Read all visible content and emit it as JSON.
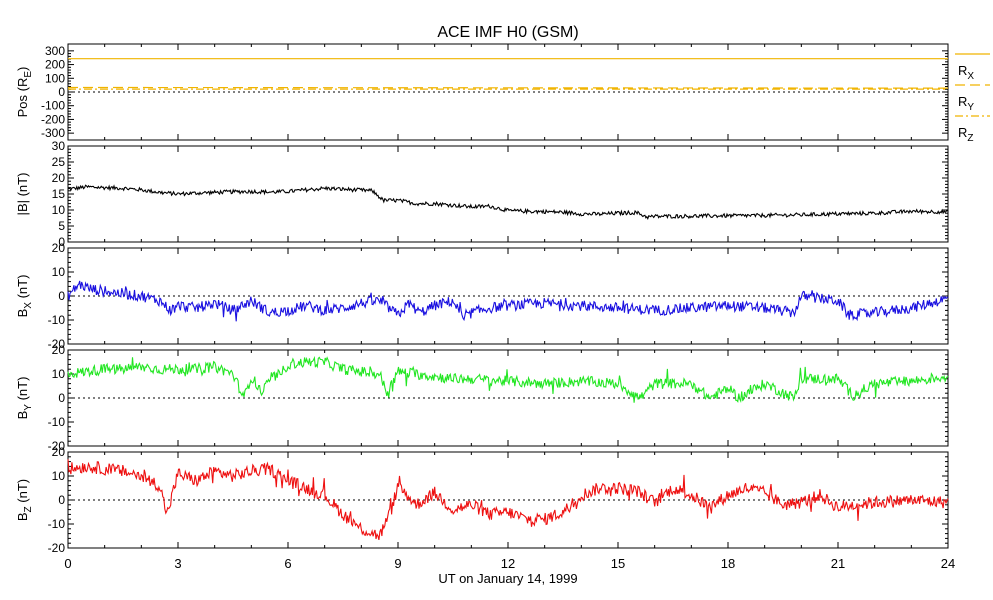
{
  "title": "ACE IMF H0 (GSM)",
  "xlabel": "UT on January 14, 1999",
  "x_ticks": [
    "0",
    "3",
    "6",
    "9",
    "12",
    "15",
    "18",
    "21",
    "24"
  ],
  "colors": {
    "pos": "#f0b400",
    "absb": "#000000",
    "bx": "#1a10e0",
    "by": "#22e622",
    "bz": "#ee1010",
    "zero_line": "#000000"
  },
  "chart_data": [
    {
      "type": "line",
      "panel": "position",
      "ylabel": "Pos (RE)",
      "ylabel_parts": {
        "main": "Pos (R",
        "sub": "E",
        "tail": ")"
      },
      "ylim": [
        -350,
        350
      ],
      "yticks": [
        "300",
        "200",
        "100",
        "0",
        "-100",
        "-200",
        "-300"
      ],
      "ytick_values": [
        300,
        200,
        100,
        0,
        -100,
        -200,
        -300
      ],
      "zero_line": true,
      "xlim": [
        0,
        24
      ],
      "series": [
        {
          "name": "RX",
          "label_main": "R",
          "label_sub": "X",
          "style": "solid",
          "x": [
            0,
            24
          ],
          "values": [
            243,
            243
          ]
        },
        {
          "name": "RY",
          "label_main": "R",
          "label_sub": "Y",
          "style": "dashed",
          "x": [
            0,
            24
          ],
          "values": [
            33,
            28
          ]
        },
        {
          "name": "RZ",
          "label_main": "R",
          "label_sub": "Z",
          "style": "dashdot",
          "x": [
            0,
            24
          ],
          "values": [
            21,
            21
          ]
        }
      ]
    },
    {
      "type": "line",
      "panel": "absb",
      "ylabel": "|B| (nT)",
      "ylim": [
        0,
        30
      ],
      "yticks": [
        "30",
        "25",
        "20",
        "15",
        "10",
        "5",
        "0"
      ],
      "ytick_values": [
        30,
        25,
        20,
        15,
        10,
        5,
        0
      ],
      "zero_line": false,
      "xlim": [
        0,
        24
      ],
      "noise": 0.6,
      "series": [
        {
          "name": "|B|",
          "x": [
            0,
            0.5,
            1.0,
            1.5,
            2.0,
            2.5,
            3.0,
            3.5,
            4.0,
            4.5,
            5.0,
            5.5,
            6.0,
            6.5,
            7.0,
            7.5,
            8.0,
            8.3,
            8.6,
            9.0,
            9.5,
            10.0,
            10.5,
            11.0,
            11.5,
            12.0,
            12.5,
            13.0,
            13.5,
            14.0,
            14.5,
            15.0,
            15.5,
            15.8,
            16.0,
            17.0,
            18.0,
            19.0,
            20.0,
            21.0,
            22.0,
            23.0,
            24.0
          ],
          "values": [
            16.5,
            17.2,
            17.0,
            16.8,
            16.3,
            15.5,
            15.0,
            15.3,
            15.5,
            15.7,
            15.8,
            15.6,
            15.8,
            16.3,
            16.8,
            16.5,
            16.2,
            16.0,
            13.0,
            13.0,
            12.0,
            12.0,
            11.5,
            11.0,
            11.2,
            9.8,
            9.6,
            9.5,
            9.3,
            8.8,
            8.7,
            9.0,
            9.2,
            7.8,
            8.0,
            8.1,
            8.2,
            8.3,
            8.5,
            8.8,
            9.0,
            9.6,
            9.4
          ]
        }
      ]
    },
    {
      "type": "line",
      "panel": "bx",
      "ylabel": "BX (nT)",
      "ylabel_parts": {
        "main": "B",
        "sub": "X",
        "tail": " (nT)"
      },
      "ylim": [
        -20,
        20
      ],
      "yticks": [
        "20",
        "10",
        "0",
        "-10",
        "-20"
      ],
      "ytick_values": [
        20,
        10,
        0,
        -10,
        -20
      ],
      "zero_line": true,
      "xlim": [
        0,
        24
      ],
      "noise": 2.2,
      "series": [
        {
          "name": "BX",
          "x": [
            0,
            0.3,
            0.6,
            1.0,
            1.5,
            2.0,
            2.5,
            2.8,
            3.0,
            3.5,
            4.0,
            4.5,
            5.0,
            5.5,
            6.0,
            6.5,
            7.0,
            7.5,
            8.0,
            8.5,
            9.0,
            9.3,
            9.6,
            10.0,
            10.5,
            10.8,
            11.0,
            11.5,
            12.0,
            13.0,
            14.0,
            15.0,
            16.0,
            17.0,
            18.0,
            19.0,
            19.8,
            20.0,
            20.5,
            21.0,
            21.3,
            22.0,
            23.0,
            23.5,
            24.0
          ],
          "values": [
            0,
            5,
            3,
            2,
            1,
            0,
            -2,
            -6,
            -4,
            -5,
            -3,
            -6,
            -2,
            -7,
            -6,
            -4,
            -6,
            -5,
            -3,
            -2,
            -8,
            -3,
            -7,
            -4,
            -2,
            -10,
            -7,
            -5,
            -4,
            -3,
            -4,
            -5,
            -6,
            -5,
            -4,
            -5,
            -7,
            0,
            -1,
            -2,
            -8,
            -7,
            -5,
            -3,
            -1
          ]
        }
      ]
    },
    {
      "type": "line",
      "panel": "by",
      "ylabel": "BY (nT)",
      "ylabel_parts": {
        "main": "B",
        "sub": "Y",
        "tail": " (nT)"
      },
      "ylim": [
        -20,
        20
      ],
      "yticks": [
        "20",
        "10",
        "0",
        "-10",
        "-20"
      ],
      "ytick_values": [
        20,
        10,
        0,
        -10,
        -20
      ],
      "zero_line": true,
      "xlim": [
        0,
        24
      ],
      "noise": 2.2,
      "series": [
        {
          "name": "BY",
          "x": [
            0,
            0.5,
            1.0,
            1.5,
            2.0,
            2.5,
            3.0,
            3.5,
            4.0,
            4.5,
            4.8,
            5.0,
            5.3,
            5.5,
            5.8,
            6.0,
            6.5,
            7.0,
            7.5,
            8.0,
            8.5,
            8.7,
            9.0,
            9.5,
            10.0,
            10.5,
            11.0,
            12.0,
            13.0,
            14.0,
            15.0,
            15.6,
            16.0,
            17.0,
            17.5,
            18.0,
            18.3,
            19.0,
            19.8,
            20.0,
            21.0,
            21.4,
            22.0,
            23.0,
            24.0
          ],
          "values": [
            10,
            11,
            12,
            12,
            13,
            12,
            12,
            12,
            13,
            10,
            0,
            9,
            2,
            8,
            10,
            14,
            15,
            15,
            12,
            11,
            10,
            2,
            11,
            10,
            9,
            8,
            8,
            7,
            6,
            7,
            6,
            0,
            6,
            6,
            0,
            4,
            0,
            6,
            0,
            8,
            8,
            1,
            6,
            7,
            9
          ]
        }
      ]
    },
    {
      "type": "line",
      "panel": "bz",
      "ylabel": "BZ (nT)",
      "ylabel_parts": {
        "main": "B",
        "sub": "Z",
        "tail": " (nT)"
      },
      "ylim": [
        -20,
        20
      ],
      "yticks": [
        "20",
        "10",
        "0",
        "-10",
        "-20"
      ],
      "ytick_values": [
        20,
        10,
        0,
        -10,
        -20
      ],
      "zero_line": true,
      "xlim": [
        0,
        24
      ],
      "noise": 2.6,
      "series": [
        {
          "name": "BZ",
          "x": [
            0,
            0.5,
            1.0,
            1.5,
            2.0,
            2.5,
            2.7,
            3.0,
            3.5,
            4.0,
            4.5,
            5.0,
            5.5,
            6.0,
            6.5,
            7.0,
            7.5,
            8.0,
            8.5,
            8.8,
            9.0,
            9.5,
            10.0,
            10.5,
            11.0,
            11.5,
            12.0,
            12.5,
            13.0,
            13.5,
            14.0,
            14.5,
            15.0,
            15.5,
            16.0,
            16.5,
            17.0,
            17.5,
            18.0,
            18.5,
            19.0,
            19.5,
            20.0,
            20.5,
            21.0,
            22.0,
            23.0,
            24.0
          ],
          "values": [
            13,
            14,
            13,
            12,
            10,
            6,
            -6,
            11,
            8,
            12,
            10,
            12,
            13,
            8,
            5,
            2,
            -6,
            -12,
            -15,
            -5,
            6,
            -2,
            3,
            -4,
            -2,
            -6,
            -5,
            -8,
            -8,
            -5,
            2,
            5,
            5,
            4,
            -1,
            5,
            2,
            -3,
            2,
            5,
            3,
            -2,
            -1,
            2,
            -3,
            -1,
            0,
            -1
          ]
        }
      ]
    }
  ]
}
